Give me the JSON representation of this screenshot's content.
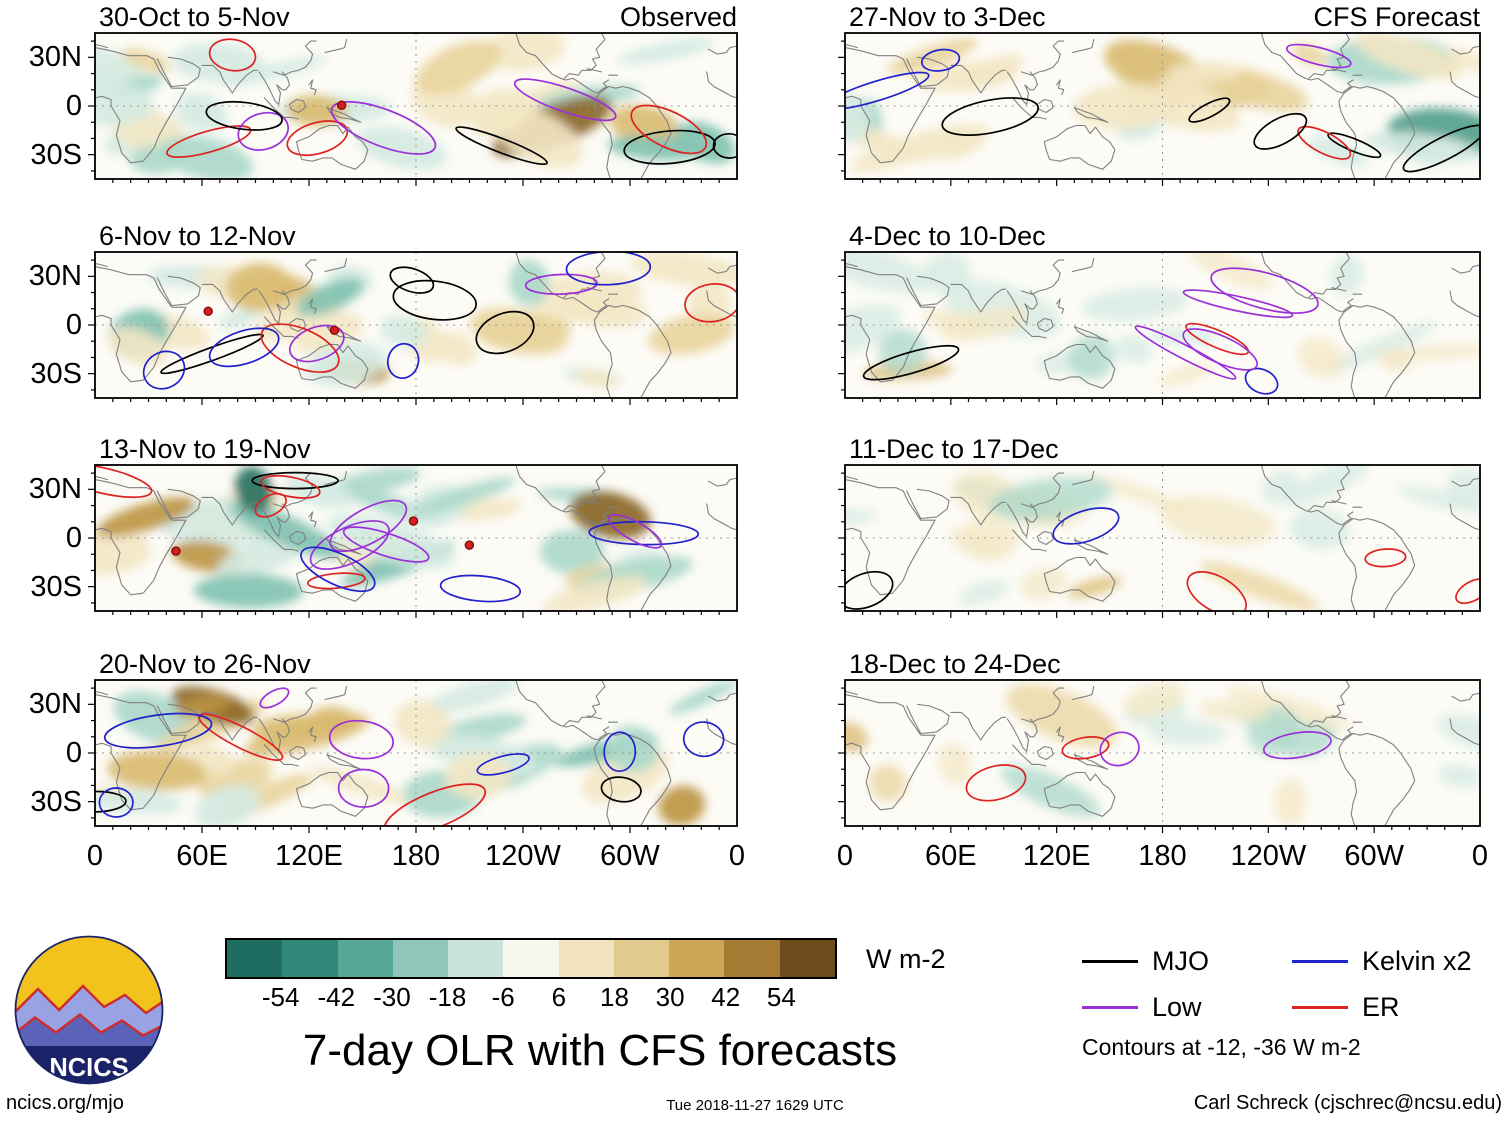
{
  "chart_data": {
    "type": "heatmap",
    "title": "7-day OLR with CFS forecasts",
    "unit": "W m-2",
    "panels": [
      {
        "title": "30-Oct to 5-Nov",
        "corner": "Observed",
        "kind": "observed"
      },
      {
        "title": "6-Nov to 12-Nov",
        "corner": "",
        "kind": "observed"
      },
      {
        "title": "13-Nov to 19-Nov",
        "corner": "",
        "kind": "observed"
      },
      {
        "title": "20-Nov to 26-Nov",
        "corner": "",
        "kind": "observed"
      },
      {
        "title": "27-Nov to 3-Dec",
        "corner": "CFS Forecast",
        "kind": "forecast"
      },
      {
        "title": "4-Dec to 10-Dec",
        "corner": "",
        "kind": "forecast"
      },
      {
        "title": "11-Dec to 17-Dec",
        "corner": "",
        "kind": "forecast"
      },
      {
        "title": "18-Dec to 24-Dec",
        "corner": "",
        "kind": "forecast"
      }
    ],
    "xticks": [
      "0",
      "60E",
      "120E",
      "180",
      "120W",
      "60W",
      "0"
    ],
    "yticks": [
      "30N",
      "0",
      "30S"
    ],
    "lat_range": [
      "45N",
      "45S"
    ],
    "lon_range": [
      "0",
      "360"
    ],
    "colorbar": {
      "ticks": [
        "-54",
        "-42",
        "-30",
        "-18",
        "-6",
        "6",
        "18",
        "30",
        "42",
        "54"
      ],
      "unit": "W m-2",
      "colors": [
        "#1d6e60",
        "#2f8878",
        "#57a796",
        "#8ec7b9",
        "#c8e4dc",
        "#f7f6ef",
        "#f0e3bd",
        "#e2ca8e",
        "#cfa556",
        "#a67b33",
        "#6e4a1d"
      ]
    },
    "legend": [
      {
        "label": "MJO",
        "color": "#000000"
      },
      {
        "label": "Low",
        "color": "#9b30d9"
      },
      {
        "label": "Kelvin x2",
        "color": "#2222cc"
      },
      {
        "label": "ER",
        "color": "#dd2222"
      }
    ],
    "contour_note": "Contours at -12, -36 W m-2"
  },
  "logo": {
    "text": "NCICS"
  },
  "footer": {
    "left": "ncics.org/mjo",
    "center": "Tue 2018-11-27 1629 UTC",
    "right": "Carl Schreck (cjschrec@ncsu.edu)"
  }
}
